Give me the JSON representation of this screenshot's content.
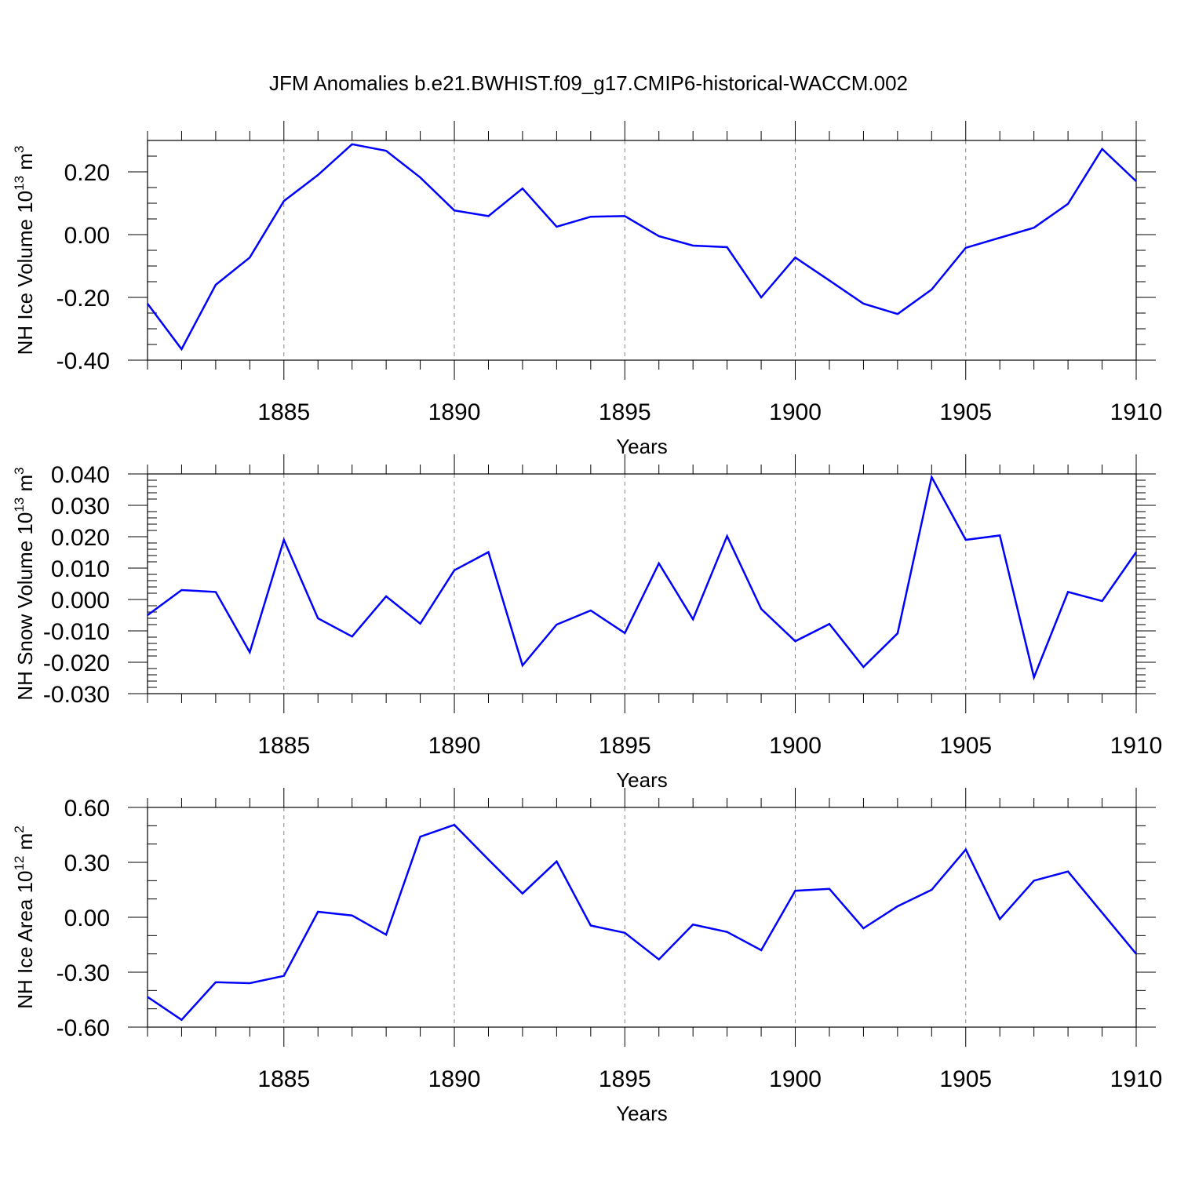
{
  "title": "JFM Anomalies b.e21.BWHIST.f09_g17.CMIP6-historical-WACCM.002",
  "line_color": "#0000ff",
  "chart_data": [
    {
      "type": "line",
      "title": "JFM Anomalies b.e21.BWHIST.f09_g17.CMIP6-historical-WACCM.002",
      "ylabel": "NH Ice Volume 10",
      "ylabel_exp": "13",
      "ylabel_unit": " m",
      "ylabel_unit_exp": "3",
      "xlabel": "Years",
      "xlim": [
        1881,
        1910
      ],
      "ylim": [
        -0.4,
        0.3
      ],
      "yticks": [
        -0.4,
        -0.2,
        0.0,
        0.2
      ],
      "ytick_labels": [
        "-0.40",
        "-0.20",
        "0.00",
        "0.20"
      ],
      "yminor_step": 0.05,
      "xticks": [
        1885,
        1890,
        1895,
        1900,
        1905,
        1910
      ],
      "xtick_labels": [
        "1885",
        "1890",
        "1895",
        "1900",
        "1905",
        "1910"
      ],
      "x": [
        1881,
        1882,
        1883,
        1884,
        1885,
        1886,
        1887,
        1888,
        1889,
        1890,
        1891,
        1892,
        1893,
        1894,
        1895,
        1896,
        1897,
        1898,
        1899,
        1900,
        1901,
        1902,
        1903,
        1904,
        1905,
        1906,
        1907,
        1908,
        1909,
        1910
      ],
      "series": [
        {
          "name": "NH Ice Volume",
          "values": [
            -0.22,
            -0.365,
            -0.16,
            -0.073,
            0.107,
            0.19,
            0.288,
            0.267,
            0.182,
            0.077,
            0.059,
            0.147,
            0.025,
            0.057,
            0.059,
            -0.005,
            -0.035,
            -0.04,
            -0.2,
            -0.073,
            -0.146,
            -0.22,
            -0.253,
            -0.175,
            -0.042,
            -0.01,
            0.022,
            0.098,
            0.273,
            0.17
          ]
        }
      ]
    },
    {
      "type": "line",
      "ylabel": "NH Snow Volume 10",
      "ylabel_exp": "13",
      "ylabel_unit": " m",
      "ylabel_unit_exp": "3",
      "xlabel": "Years",
      "xlim": [
        1881,
        1910
      ],
      "ylim": [
        -0.03,
        0.04
      ],
      "yticks": [
        -0.03,
        -0.02,
        -0.01,
        0.0,
        0.01,
        0.02,
        0.03,
        0.04
      ],
      "ytick_labels": [
        "-0.030",
        "-0.020",
        "-0.010",
        "0.000",
        "0.010",
        "0.020",
        "0.030",
        "0.040"
      ],
      "yminor_step": 0.002,
      "xticks": [
        1885,
        1890,
        1895,
        1900,
        1905,
        1910
      ],
      "xtick_labels": [
        "1885",
        "1890",
        "1895",
        "1900",
        "1905",
        "1910"
      ],
      "x": [
        1881,
        1882,
        1883,
        1884,
        1885,
        1886,
        1887,
        1888,
        1889,
        1890,
        1891,
        1892,
        1893,
        1894,
        1895,
        1896,
        1897,
        1898,
        1899,
        1900,
        1901,
        1902,
        1903,
        1904,
        1905,
        1906,
        1907,
        1908,
        1909,
        1910
      ],
      "series": [
        {
          "name": "NH Snow Volume",
          "values": [
            -0.005,
            0.003,
            0.0024,
            -0.0168,
            0.019,
            -0.006,
            -0.0118,
            0.001,
            -0.0077,
            0.0093,
            0.0151,
            -0.021,
            -0.008,
            -0.0035,
            -0.0107,
            0.0115,
            -0.0063,
            0.0202,
            -0.003,
            -0.0133,
            -0.0078,
            -0.0215,
            -0.0108,
            0.039,
            0.019,
            0.0204,
            -0.0248,
            0.0024,
            -0.0005,
            0.0151
          ]
        }
      ]
    },
    {
      "type": "line",
      "ylabel": "NH Ice Area 10",
      "ylabel_exp": "12",
      "ylabel_unit": " m",
      "ylabel_unit_exp": "2",
      "xlabel": "Years",
      "xlim": [
        1881,
        1910
      ],
      "ylim": [
        -0.6,
        0.6
      ],
      "yticks": [
        -0.6,
        -0.3,
        0.0,
        0.3,
        0.6
      ],
      "ytick_labels": [
        "-0.60",
        "-0.30",
        "0.00",
        "0.30",
        "0.60"
      ],
      "yminor_step": 0.1,
      "xticks": [
        1885,
        1890,
        1895,
        1900,
        1905,
        1910
      ],
      "xtick_labels": [
        "1885",
        "1890",
        "1895",
        "1900",
        "1905",
        "1910"
      ],
      "x": [
        1881,
        1882,
        1883,
        1884,
        1885,
        1886,
        1887,
        1888,
        1889,
        1890,
        1891,
        1892,
        1893,
        1894,
        1895,
        1896,
        1897,
        1898,
        1899,
        1900,
        1901,
        1902,
        1903,
        1904,
        1905,
        1906,
        1907,
        1908,
        1909,
        1910
      ],
      "series": [
        {
          "name": "NH Ice Area",
          "values": [
            -0.435,
            -0.56,
            -0.355,
            -0.36,
            -0.32,
            0.03,
            0.01,
            -0.095,
            0.44,
            0.505,
            0.315,
            0.13,
            0.305,
            -0.045,
            -0.085,
            -0.23,
            -0.04,
            -0.08,
            -0.18,
            0.145,
            0.155,
            -0.06,
            0.06,
            0.15,
            0.37,
            -0.01,
            0.2,
            0.25,
            0.025,
            -0.2
          ]
        }
      ]
    }
  ]
}
